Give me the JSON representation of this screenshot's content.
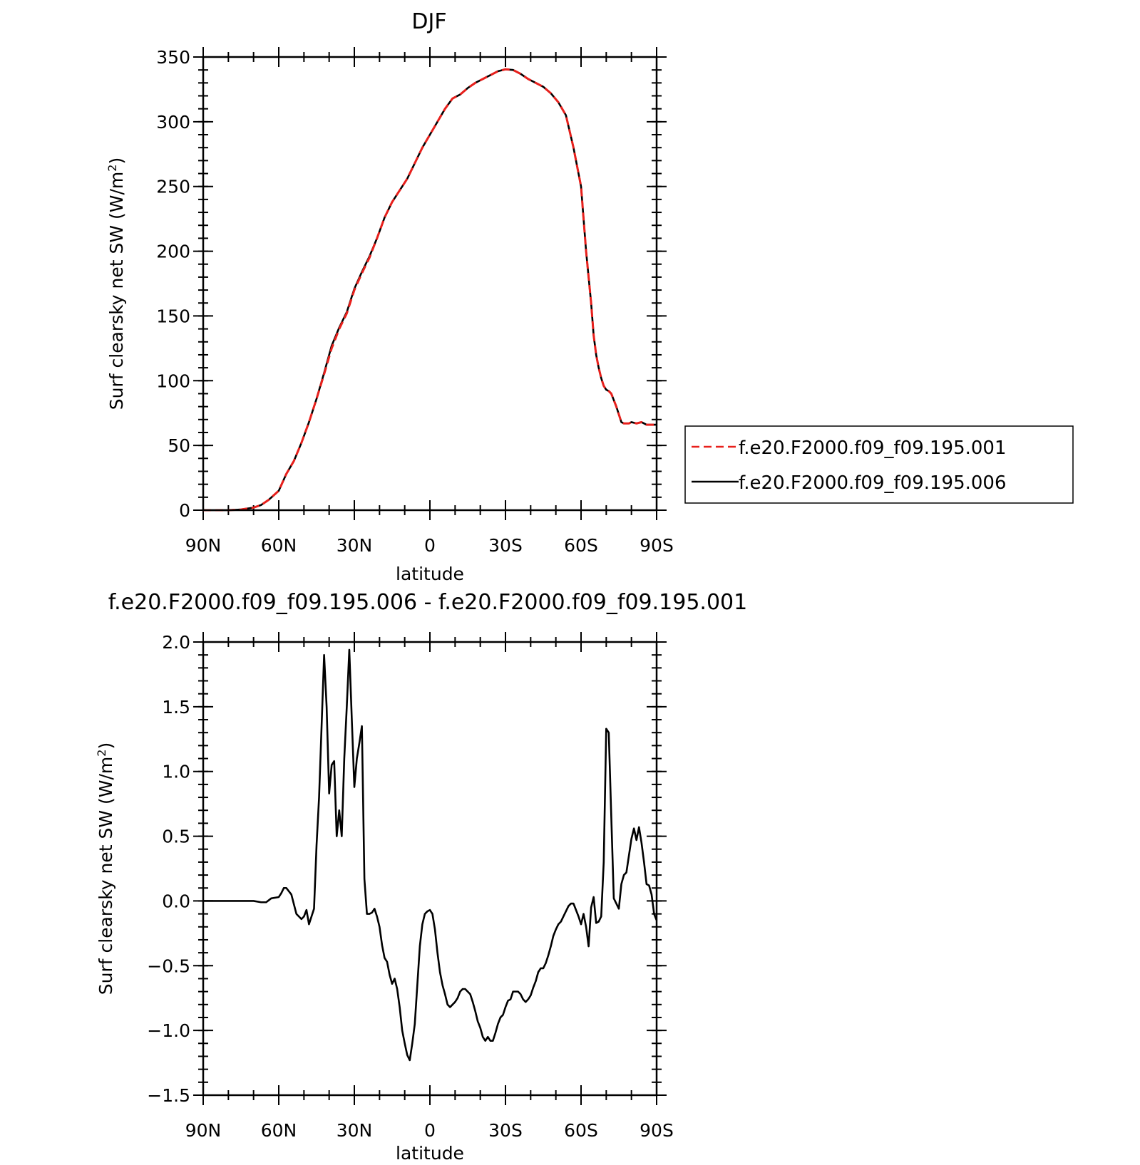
{
  "chart_data": [
    {
      "type": "line",
      "title": "DJF",
      "xlabel": "latitude",
      "ylabel_main": "Surf clearsky net SW (W/m",
      "ylabel_sup": "2",
      "ylabel_close": ")",
      "xlim": [
        90,
        -90
      ],
      "ylim": [
        0,
        350
      ],
      "xticks": [
        90,
        60,
        30,
        0,
        -30,
        -60,
        -90
      ],
      "xtick_labels": [
        "90N",
        "60N",
        "30N",
        "0",
        "30S",
        "60S",
        "90S"
      ],
      "yticks": [
        0,
        50,
        100,
        150,
        200,
        250,
        300,
        350
      ],
      "ytick_labels": [
        "0",
        "50",
        "100",
        "150",
        "200",
        "250",
        "300",
        "350"
      ],
      "legend": {
        "placement": "right",
        "entries": [
          "f.e20.F2000.f09_f09.195.001",
          "f.e20.F2000.f09_f09.195.006"
        ]
      },
      "series": [
        {
          "name": "f.e20.F2000.f09_f09.195.001",
          "color": "#e8201c",
          "style": "dashed",
          "x": [
            90,
            80,
            75,
            70,
            67,
            64,
            60,
            57,
            54,
            51,
            48,
            45,
            42,
            39,
            36,
            33,
            30,
            27,
            24,
            21,
            18,
            15,
            12,
            9,
            6,
            3,
            0,
            -3,
            -6,
            -9,
            -12,
            -15,
            -18,
            -21,
            -24,
            -27,
            -30,
            -33,
            -36,
            -39,
            -42,
            -45,
            -48,
            -51,
            -54,
            -57,
            -60,
            -62,
            -64,
            -65,
            -66,
            -67,
            -68,
            -69,
            -70,
            -71,
            -72,
            -74,
            -76,
            -77,
            -78,
            -79,
            -80,
            -82,
            -84,
            -86,
            -88,
            -90
          ],
          "y": [
            0,
            0,
            0.5,
            2,
            4,
            8,
            15,
            28,
            38,
            52,
            68,
            86,
            105,
            125,
            140,
            152,
            170,
            183,
            195,
            210,
            226,
            238,
            247,
            256,
            268,
            280,
            290,
            300,
            310,
            318,
            321,
            326,
            330,
            333,
            336,
            339,
            340.5,
            340,
            337,
            333,
            330,
            327,
            322,
            315,
            305,
            280,
            250,
            200,
            160,
            135,
            120,
            110,
            102,
            96,
            93,
            92,
            90,
            80,
            68,
            67,
            67,
            67,
            68,
            67,
            68,
            66,
            66,
            66
          ]
        },
        {
          "name": "f.e20.F2000.f09_f09.195.006",
          "color": "#000000",
          "style": "solid",
          "x": [
            90,
            80,
            75,
            70,
            67,
            64,
            60,
            57,
            54,
            51,
            48,
            45,
            42,
            39,
            36,
            33,
            30,
            27,
            24,
            21,
            18,
            15,
            12,
            9,
            6,
            3,
            0,
            -3,
            -6,
            -9,
            -12,
            -15,
            -18,
            -21,
            -24,
            -27,
            -30,
            -33,
            -36,
            -39,
            -42,
            -45,
            -48,
            -51,
            -54,
            -57,
            -60,
            -62,
            -64,
            -65,
            -66,
            -67,
            -68,
            -69,
            -70,
            -71,
            -72,
            -74,
            -76,
            -77,
            -78,
            -79,
            -80,
            -82,
            -84,
            -86,
            -88,
            -90
          ],
          "y": [
            0,
            0,
            0.5,
            2,
            4,
            8,
            15,
            28,
            38,
            52,
            68,
            86,
            106,
            127,
            141,
            153,
            171,
            184,
            196,
            210,
            226,
            238,
            247,
            256,
            268,
            280,
            290,
            300,
            310,
            318,
            321,
            326,
            330,
            333,
            336,
            339,
            340.5,
            340,
            337,
            333,
            330,
            327,
            322,
            315,
            305,
            280,
            250,
            200,
            160,
            135,
            120,
            110,
            102,
            96,
            93,
            92,
            90,
            80,
            68,
            67,
            67,
            67,
            68,
            67,
            68,
            66,
            66,
            66
          ]
        }
      ]
    },
    {
      "type": "line",
      "title": "f.e20.F2000.f09_f09.195.006 - f.e20.F2000.f09_f09.195.001",
      "xlabel": "latitude",
      "ylabel_main": "Surf clearsky net SW (W/m",
      "ylabel_sup": "2",
      "ylabel_close": ")",
      "xlim": [
        90,
        -90
      ],
      "ylim": [
        -1.5,
        2.0
      ],
      "xticks": [
        90,
        60,
        30,
        0,
        -30,
        -60,
        -90
      ],
      "xtick_labels": [
        "90N",
        "60N",
        "30N",
        "0",
        "30S",
        "60S",
        "90S"
      ],
      "yticks": [
        2.0,
        1.5,
        1.0,
        0.5,
        0.0,
        -0.5,
        -1.0,
        -1.5
      ],
      "ytick_labels": [
        "2.0",
        "1.5",
        "1.0",
        "0.5",
        "0.0",
        "−0.5",
        "−1.0",
        "−1.5"
      ],
      "series": [
        {
          "color": "#000000",
          "style": "solid",
          "x": [
            90,
            80,
            70,
            67,
            65,
            63,
            60,
            59,
            58,
            57,
            55,
            53,
            51,
            50,
            49,
            48,
            47,
            46,
            45,
            44,
            43,
            42,
            41,
            40,
            39,
            38,
            37,
            36,
            35,
            34,
            33,
            32,
            31,
            30,
            29,
            28,
            27,
            26,
            25,
            24,
            23,
            22,
            21,
            20,
            19,
            18,
            17,
            16,
            15,
            14,
            13,
            12,
            11,
            10,
            9,
            8,
            7,
            6,
            5,
            4,
            3,
            2,
            1,
            0,
            -1,
            -2,
            -3,
            -4,
            -5,
            -6,
            -7,
            -8,
            -9,
            -10,
            -11,
            -12,
            -13,
            -14,
            -15,
            -16,
            -17,
            -18,
            -19,
            -20,
            -21,
            -22,
            -23,
            -24,
            -25,
            -26,
            -27,
            -28,
            -29,
            -30,
            -31,
            -32,
            -33,
            -34,
            -35,
            -36,
            -37,
            -38,
            -39,
            -40,
            -41,
            -42,
            -43,
            -44,
            -45,
            -46,
            -47,
            -48,
            -49,
            -50,
            -51,
            -52,
            -53,
            -54,
            -55,
            -56,
            -57,
            -58,
            -59,
            -60,
            -61,
            -62,
            -63,
            -64,
            -65,
            -66,
            -67,
            -68,
            -69,
            -70,
            -71,
            -72,
            -73,
            -74,
            -75,
            -76,
            -77,
            -78,
            -79,
            -80,
            -81,
            -82,
            -83,
            -84,
            -85,
            -86,
            -87,
            -88,
            -89,
            -90
          ],
          "y": [
            0,
            0,
            0,
            -0.01,
            -0.01,
            0.02,
            0.03,
            0.06,
            0.1,
            0.1,
            0.05,
            -0.1,
            -0.14,
            -0.12,
            -0.07,
            -0.18,
            -0.12,
            -0.06,
            0.43,
            0.8,
            1.35,
            1.9,
            1.5,
            0.83,
            1.05,
            1.08,
            0.5,
            0.7,
            0.5,
            1.1,
            1.5,
            1.94,
            1.4,
            0.88,
            1.1,
            1.22,
            1.35,
            0.17,
            -0.1,
            -0.1,
            -0.09,
            -0.06,
            -0.12,
            -0.2,
            -0.34,
            -0.44,
            -0.47,
            -0.57,
            -0.64,
            -0.6,
            -0.68,
            -0.82,
            -1.0,
            -1.1,
            -1.19,
            -1.23,
            -1.1,
            -0.95,
            -0.65,
            -0.35,
            -0.18,
            -0.1,
            -0.08,
            -0.07,
            -0.1,
            -0.22,
            -0.4,
            -0.55,
            -0.65,
            -0.72,
            -0.8,
            -0.82,
            -0.8,
            -0.78,
            -0.75,
            -0.7,
            -0.68,
            -0.68,
            -0.7,
            -0.72,
            -0.78,
            -0.85,
            -0.93,
            -0.98,
            -1.05,
            -1.08,
            -1.05,
            -1.08,
            -1.08,
            -1.02,
            -0.95,
            -0.9,
            -0.88,
            -0.82,
            -0.77,
            -0.76,
            -0.7,
            -0.7,
            -0.7,
            -0.72,
            -0.76,
            -0.78,
            -0.76,
            -0.73,
            -0.67,
            -0.62,
            -0.55,
            -0.52,
            -0.52,
            -0.48,
            -0.42,
            -0.35,
            -0.27,
            -0.22,
            -0.18,
            -0.16,
            -0.12,
            -0.08,
            -0.04,
            -0.02,
            -0.02,
            -0.07,
            -0.12,
            -0.18,
            -0.1,
            -0.2,
            -0.35,
            -0.05,
            0.03,
            -0.17,
            -0.16,
            -0.12,
            0.3,
            1.33,
            1.3,
            0.65,
            0.02,
            -0.02,
            -0.06,
            0.13,
            0.2,
            0.22,
            0.35,
            0.48,
            0.56,
            0.47,
            0.57,
            0.45,
            0.3,
            0.13,
            0.12,
            0.05,
            -0.1,
            -0.15
          ]
        }
      ]
    }
  ]
}
